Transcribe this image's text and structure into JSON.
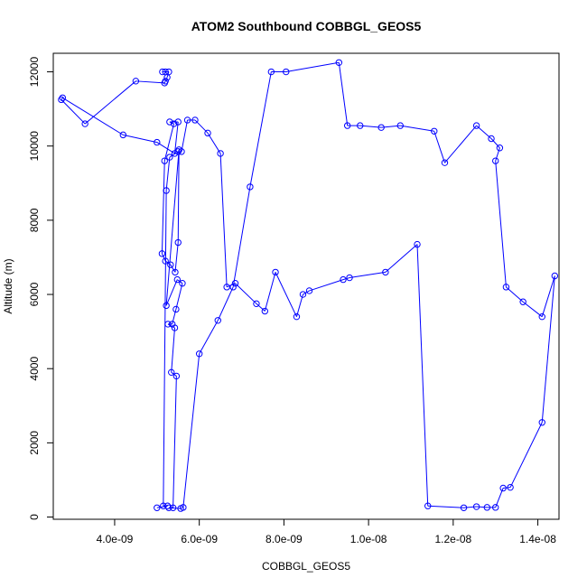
{
  "chart_data": {
    "type": "line",
    "title": "ATOM2 Southbound COBBGL_GEOS5",
    "xlabel": "COBBGL_GEOS5",
    "ylabel": "Altitude (m)",
    "xlim": [
      2.55e-09,
      1.45e-08
    ],
    "ylim": [
      -60,
      12500
    ],
    "x_ticks": [
      4e-09,
      6e-09,
      8e-09,
      1e-08,
      1.2e-08,
      1.4e-08
    ],
    "x_tick_labels": [
      "4.0e-09",
      "6.0e-09",
      "8.0e-09",
      "1.0e-08",
      "1.2e-08",
      "1.4e-08"
    ],
    "y_ticks": [
      0,
      2000,
      4000,
      6000,
      8000,
      10000,
      12000
    ],
    "y_tick_labels": [
      "0",
      "2000",
      "4000",
      "6000",
      "8000",
      "10000",
      "12000"
    ],
    "grid": false,
    "line_color": "#0000ff",
    "marker": "open-circle",
    "series": [
      {
        "x": [
          5.13e-09,
          5.2e-09,
          5.28e-09,
          5.24e-09,
          5.2e-09,
          5.18e-09,
          4.5e-09,
          3.3e-09,
          2.74e-09,
          2.77e-09,
          4.2e-09,
          5e-09,
          5.42e-09,
          5.5e-09,
          5.3e-09,
          5.4e-09,
          5.18e-09,
          5.12e-09,
          5.2e-09,
          5.32e-09,
          5.43e-09,
          5.5e-09,
          5.52e-09,
          5.22e-09,
          5.48e-09,
          5.6e-09,
          5.45e-09,
          5.36e-09,
          5.26e-09,
          5.42e-09,
          5.34e-09,
          5.46e-09,
          5.38e-09,
          5.28e-09,
          5.56e-09,
          5.62e-09,
          6e-09,
          6.44e-09,
          6.8e-09,
          7.2e-09,
          7.7e-09,
          8.05e-09,
          9.3e-09,
          9.5e-09,
          9.8e-09,
          1.03e-08,
          1.075e-08,
          1.155e-08,
          1.18e-08,
          1.255e-08,
          1.29e-08,
          1.31e-08,
          1.3e-08,
          1.325e-08,
          1.365e-08,
          1.41e-08,
          1.44e-08,
          1.41e-08,
          1.335e-08,
          1.318e-08,
          1.3e-08,
          1.28e-08,
          1.255e-08,
          1.225e-08,
          1.14e-08,
          1.115e-08,
          1.04e-08,
          9.55e-09,
          9.4e-09,
          8.6e-09,
          8.45e-09,
          8.3e-09,
          7.8e-09,
          7.55e-09,
          7.35e-09,
          6.85e-09,
          6.65e-09,
          6.5e-09,
          6.2e-09,
          5.9e-09,
          5.72e-09,
          5.58e-09,
          5.5e-09,
          5.3e-09,
          5.22e-09,
          5.15e-09,
          5.25e-09,
          5e-09
        ],
        "y": [
          12000,
          12000,
          12000,
          11850,
          11750,
          11700,
          11750,
          10600,
          11250,
          11300,
          10300,
          10100,
          9800,
          10650,
          10650,
          10600,
          9600,
          7100,
          6900,
          6800,
          6600,
          7400,
          9900,
          5700,
          6400,
          6300,
          5600,
          5200,
          5200,
          5100,
          3900,
          3800,
          250,
          250,
          230,
          260,
          4400,
          5300,
          6200,
          8900,
          12000,
          12000,
          12250,
          10550,
          10550,
          10500,
          10550,
          10400,
          9550,
          10550,
          10200,
          9950,
          9600,
          6200,
          5800,
          5400,
          6500,
          2550,
          800,
          780,
          260,
          260,
          280,
          250,
          300,
          7350,
          6600,
          6450,
          6400,
          6100,
          6000,
          5400,
          6600,
          5550,
          5750,
          6300,
          6200,
          9800,
          10350,
          10700,
          10700,
          9850,
          9850,
          9700,
          8800,
          300,
          300,
          250
        ]
      }
    ]
  }
}
